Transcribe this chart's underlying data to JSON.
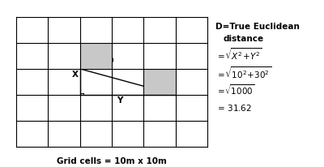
{
  "grid_cols": 6,
  "grid_rows": 5,
  "bg_color": "#ffffff",
  "grid_color": "#000000",
  "shade_color": "#c8c8c8",
  "grid_linewidth": 0.8,
  "caption": "Grid cells = 10m x 10m",
  "formula_title1": "D=True Euclidean",
  "formula_title2": "distance",
  "formula1": "=$\\sqrt{X^2+Y^2}$",
  "formula2": "=$\\sqrt{10^2+30^2}$",
  "formula3": "=$\\sqrt{1000}$",
  "formula4": "= 31.62"
}
